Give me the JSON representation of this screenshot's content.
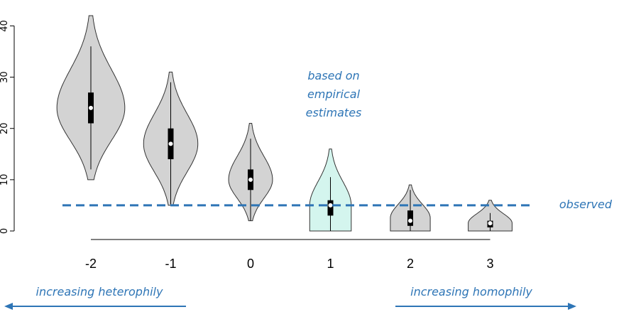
{
  "chart_data": {
    "type": "violin",
    "categories": [
      "-2",
      "-1",
      "0",
      "1",
      "2",
      "3"
    ],
    "ylim": [
      0,
      42
    ],
    "yticks": [
      0,
      10,
      20,
      30,
      40
    ],
    "grid": false,
    "series": [
      {
        "category": "-2",
        "min": 10,
        "max": 42,
        "whisker_low": 12,
        "whisker_high": 36,
        "q1": 21,
        "median": 24,
        "q3": 27,
        "mode": 24,
        "max_width": 0.85,
        "highlight": false
      },
      {
        "category": "-1",
        "min": 5,
        "max": 31,
        "whisker_low": 5,
        "whisker_high": 29,
        "q1": 14,
        "median": 17,
        "q3": 20,
        "mode": 17,
        "max_width": 0.68,
        "highlight": false
      },
      {
        "category": "0",
        "min": 2,
        "max": 21,
        "whisker_low": 2,
        "whisker_high": 18,
        "q1": 8,
        "median": 10,
        "q3": 12,
        "mode": 10,
        "max_width": 0.55,
        "highlight": false
      },
      {
        "category": "1",
        "min": 0,
        "max": 16,
        "whisker_low": 0,
        "whisker_high": 10.5,
        "q1": 3,
        "median": 5,
        "q3": 6,
        "mode": 5,
        "max_width": 0.52,
        "highlight": true
      },
      {
        "category": "2",
        "min": 0,
        "max": 9,
        "whisker_low": 0,
        "whisker_high": 8,
        "q1": 1,
        "median": 2,
        "q3": 4,
        "mode": 2.5,
        "max_width": 0.5,
        "highlight": false
      },
      {
        "category": "3",
        "min": 0,
        "max": 6,
        "whisker_low": 0,
        "whisker_high": 3.5,
        "q1": 0.7,
        "median": 1.5,
        "q3": 2,
        "mode": 1.5,
        "max_width": 0.55,
        "highlight": false
      }
    ],
    "reference_line": {
      "value": 5,
      "label": "observed"
    },
    "annotation_lines": [
      "based on",
      "empirical",
      "estimates"
    ],
    "arrow_left_label": "increasing heterophily",
    "arrow_right_label": "increasing homophily",
    "colors": {
      "violin_fill": "#d3d3d3",
      "highlight_fill": "#d4f5ee",
      "accent": "#2e75b6",
      "box": "#000000",
      "median_dot": "#ffffff"
    }
  }
}
